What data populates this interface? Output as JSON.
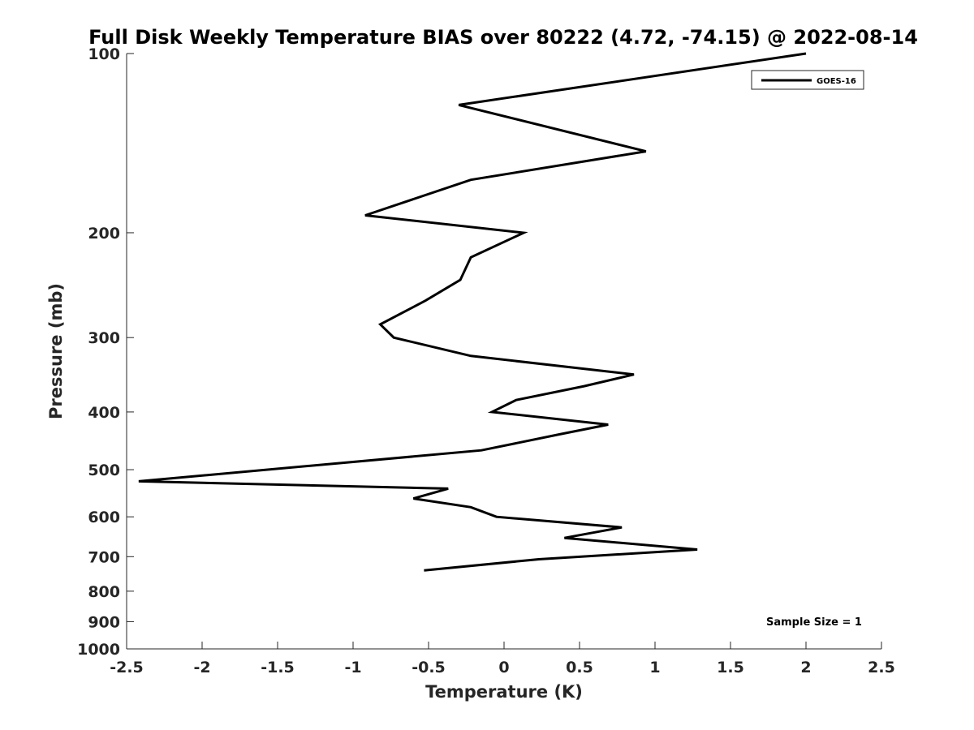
{
  "chart_data": {
    "type": "line",
    "title": "Full Disk Weekly Temperature BIAS over 80222 (4.72, -74.15) @ 2022-08-14",
    "xlabel": "Temperature (K)",
    "ylabel": "Pressure (mb)",
    "xlim": [
      -2.5,
      2.5
    ],
    "ylim": [
      1000,
      100
    ],
    "yscale": "log",
    "y_reversed": true,
    "x_ticks": [
      "-2.5",
      "-2",
      "-1.5",
      "-1",
      "-0.5",
      "0",
      "0.5",
      "1",
      "1.5",
      "2",
      "2.5"
    ],
    "y_ticks": [
      "100",
      "200",
      "300",
      "400",
      "500",
      "600",
      "700",
      "800",
      "900",
      "1000"
    ],
    "grid": false,
    "legend_position": "top-right",
    "series": [
      {
        "name": "GOES-16",
        "color": "#000000",
        "points": [
          {
            "x": 2.0,
            "p": 100
          },
          {
            "x": -0.3,
            "p": 122
          },
          {
            "x": 0.94,
            "p": 146
          },
          {
            "x": -0.22,
            "p": 163
          },
          {
            "x": -0.92,
            "p": 187
          },
          {
            "x": 0.13,
            "p": 200
          },
          {
            "x": -0.22,
            "p": 220
          },
          {
            "x": -0.29,
            "p": 240
          },
          {
            "x": -0.52,
            "p": 260
          },
          {
            "x": -0.82,
            "p": 285
          },
          {
            "x": -0.73,
            "p": 300
          },
          {
            "x": -0.22,
            "p": 322
          },
          {
            "x": 0.86,
            "p": 346
          },
          {
            "x": 0.53,
            "p": 362
          },
          {
            "x": 0.08,
            "p": 382
          },
          {
            "x": -0.08,
            "p": 400
          },
          {
            "x": 0.69,
            "p": 420
          },
          {
            "x": 0.37,
            "p": 436
          },
          {
            "x": -0.15,
            "p": 464
          },
          {
            "x": -2.42,
            "p": 523
          },
          {
            "x": -0.37,
            "p": 538
          },
          {
            "x": -0.6,
            "p": 559
          },
          {
            "x": -0.22,
            "p": 578
          },
          {
            "x": -0.05,
            "p": 600
          },
          {
            "x": 0.78,
            "p": 625
          },
          {
            "x": 0.4,
            "p": 651
          },
          {
            "x": 1.28,
            "p": 681
          },
          {
            "x": 0.23,
            "p": 707
          },
          {
            "x": -0.53,
            "p": 738
          }
        ]
      }
    ],
    "annotation": "Sample Size = 1"
  }
}
